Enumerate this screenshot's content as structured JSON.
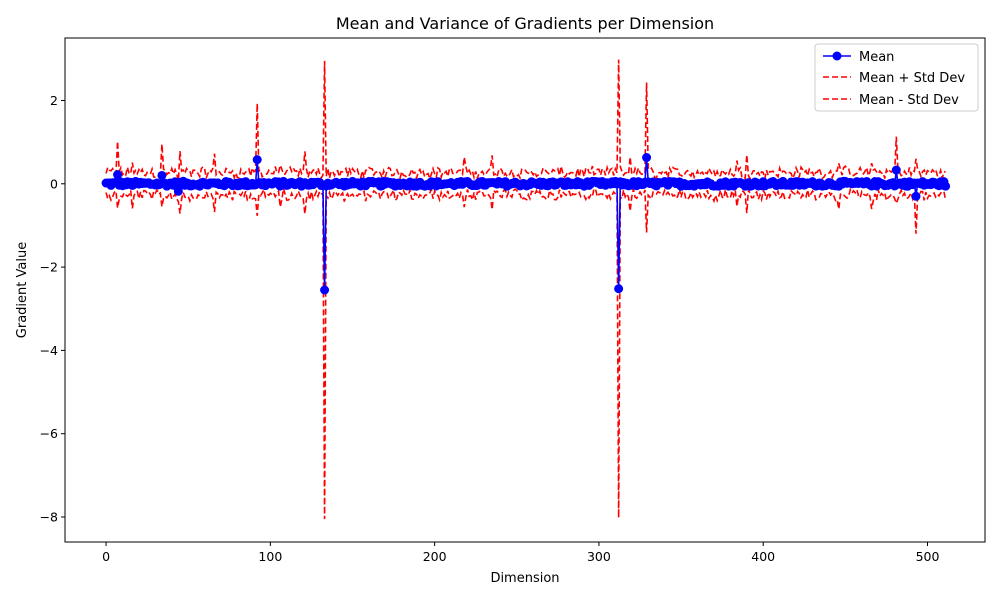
{
  "chart_data": {
    "type": "line",
    "title": "Mean and Variance of Gradients per Dimension",
    "xlabel": "Dimension",
    "ylabel": "Gradient Value",
    "xlim": [
      -25,
      535
    ],
    "ylim": [
      -8.6,
      3.5
    ],
    "xticks": [
      0,
      100,
      200,
      300,
      400,
      500
    ],
    "xtick_labels": [
      "0",
      "100",
      "200",
      "300",
      "400",
      "500"
    ],
    "yticks": [
      -8,
      -6,
      -4,
      -2,
      0,
      2
    ],
    "ytick_labels": [
      "−8",
      "−6",
      "−4",
      "−2",
      "0",
      "2"
    ],
    "grid": false,
    "legend_position": "top-right",
    "n_dimensions": 512,
    "series": [
      {
        "name": "Mean",
        "color": "#0000ff",
        "style": "solid-marker"
      },
      {
        "name": "Mean + Std Dev",
        "color": "#ff0000",
        "style": "dashed"
      },
      {
        "name": "Mean - Std Dev",
        "color": "#ff0000",
        "style": "dashed"
      }
    ],
    "mean_outliers": [
      {
        "x": 7,
        "y": 0.22
      },
      {
        "x": 34,
        "y": 0.2
      },
      {
        "x": 44,
        "y": -0.18
      },
      {
        "x": 92,
        "y": 0.58
      },
      {
        "x": 133,
        "y": -2.55
      },
      {
        "x": 312,
        "y": -2.52
      },
      {
        "x": 329,
        "y": 0.63
      },
      {
        "x": 481,
        "y": 0.33
      },
      {
        "x": 493,
        "y": -0.3
      }
    ],
    "std_outliers": [
      {
        "x": 7,
        "s": 0.8
      },
      {
        "x": 16,
        "s": 0.55
      },
      {
        "x": 34,
        "s": 0.75
      },
      {
        "x": 45,
        "s": 0.75
      },
      {
        "x": 66,
        "s": 0.7
      },
      {
        "x": 92,
        "s": 1.35
      },
      {
        "x": 106,
        "s": 0.5
      },
      {
        "x": 121,
        "s": 0.75
      },
      {
        "x": 133,
        "s": 5.5
      },
      {
        "x": 218,
        "s": 0.6
      },
      {
        "x": 235,
        "s": 0.65
      },
      {
        "x": 312,
        "s": 5.5
      },
      {
        "x": 319,
        "s": 0.65
      },
      {
        "x": 329,
        "s": 1.8
      },
      {
        "x": 384,
        "s": 0.55
      },
      {
        "x": 390,
        "s": 0.7
      },
      {
        "x": 446,
        "s": 0.55
      },
      {
        "x": 466,
        "s": 0.55
      },
      {
        "x": 481,
        "s": 0.8
      },
      {
        "x": 493,
        "s": 0.9
      }
    ],
    "mean_noise_amplitude": 0.06,
    "std_base": 0.3
  }
}
